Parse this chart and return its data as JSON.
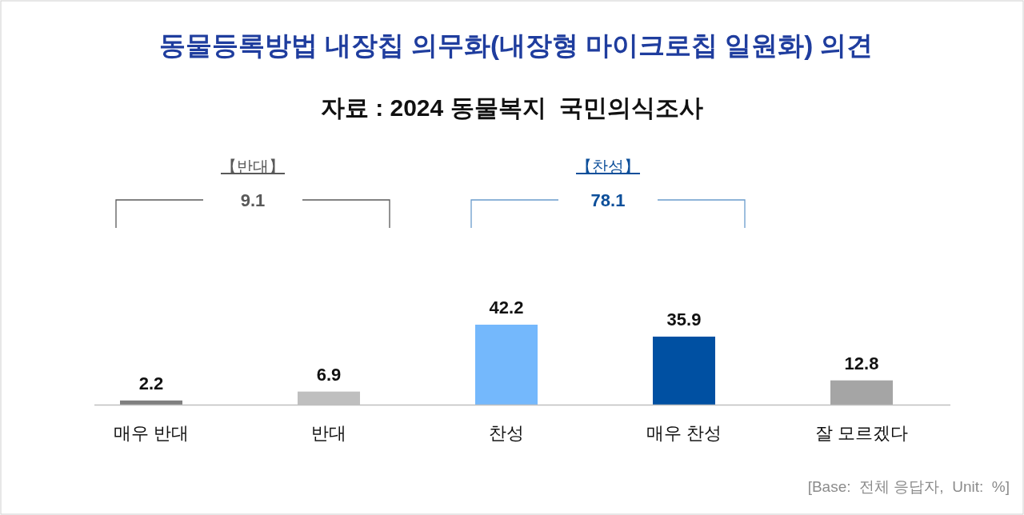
{
  "chart_data": {
    "type": "bar",
    "title": "동물등록방법 내장칩 의무화(내장형 마이크로칩 일원화) 의견",
    "subtitle": "자료 : 2024 동물복지  국민의식조사",
    "categories": [
      "매우 반대",
      "반대",
      "찬성",
      "매우 찬성",
      "잘 모르겠다"
    ],
    "values": [
      2.2,
      6.9,
      42.2,
      35.9,
      12.8
    ],
    "colors": [
      "#7f7f7f",
      "#bfbfbf",
      "#74b8fc",
      "#0050a2",
      "#a5a5a5"
    ],
    "data_labels": true,
    "annotations": [
      "【반대】",
      "9.1",
      "【찬성】",
      "78.1",
      "[Base:  전체 응답자,  Unit:  %]"
    ]
  }
}
